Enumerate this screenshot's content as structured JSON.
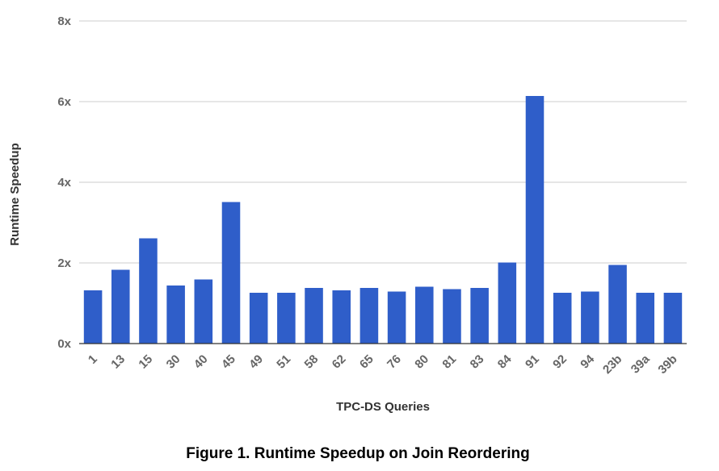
{
  "chart_data": {
    "type": "bar",
    "title": "",
    "xlabel": "TPC-DS Queries",
    "ylabel": "Runtime Speedup",
    "caption": "Figure 1. Runtime Speedup on Join Reordering",
    "ylim": [
      0,
      8
    ],
    "yticks": [
      "0x",
      "2x",
      "4x",
      "6x",
      "8x"
    ],
    "ytick_values": [
      0,
      2,
      4,
      6,
      8
    ],
    "grid": true,
    "legend": "none",
    "bar_color": "#2f5ec9",
    "categories": [
      "1",
      "13",
      "15",
      "30",
      "40",
      "45",
      "49",
      "51",
      "58",
      "62",
      "65",
      "76",
      "80",
      "81",
      "83",
      "84",
      "91",
      "92",
      "94",
      "23b",
      "39a",
      "39b"
    ],
    "values": [
      1.32,
      1.83,
      2.61,
      1.44,
      1.59,
      3.51,
      1.26,
      1.26,
      1.38,
      1.32,
      1.38,
      1.29,
      1.41,
      1.35,
      1.38,
      2.01,
      6.14,
      1.26,
      1.29,
      1.95,
      1.26,
      1.26
    ]
  }
}
